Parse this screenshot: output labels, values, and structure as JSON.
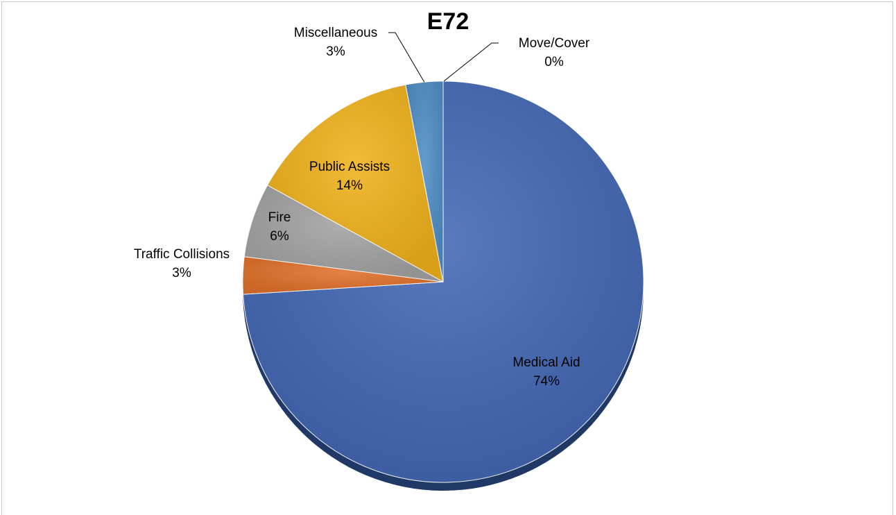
{
  "chart_data": {
    "type": "pie",
    "title": "E72",
    "slices": [
      {
        "label": "Medical Aid",
        "percent_label": "74%",
        "value": 74,
        "color": "#4468b5"
      },
      {
        "label": "Traffic Collisions",
        "percent_label": "3%",
        "value": 3,
        "color": "#e1712c"
      },
      {
        "label": "Fire",
        "percent_label": "6%",
        "value": 6,
        "color": "#a3a3a3"
      },
      {
        "label": "Public Assists",
        "percent_label": "14%",
        "value": 14,
        "color": "#f0b21c"
      },
      {
        "label": "Miscellaneous",
        "percent_label": "3%",
        "value": 3,
        "color": "#4f8ec6"
      },
      {
        "label": "Move/Cover",
        "percent_label": "0%",
        "value": 0,
        "color": "#3e6aa9"
      }
    ],
    "legend": "none",
    "start": "top",
    "direction": "clockwise"
  }
}
